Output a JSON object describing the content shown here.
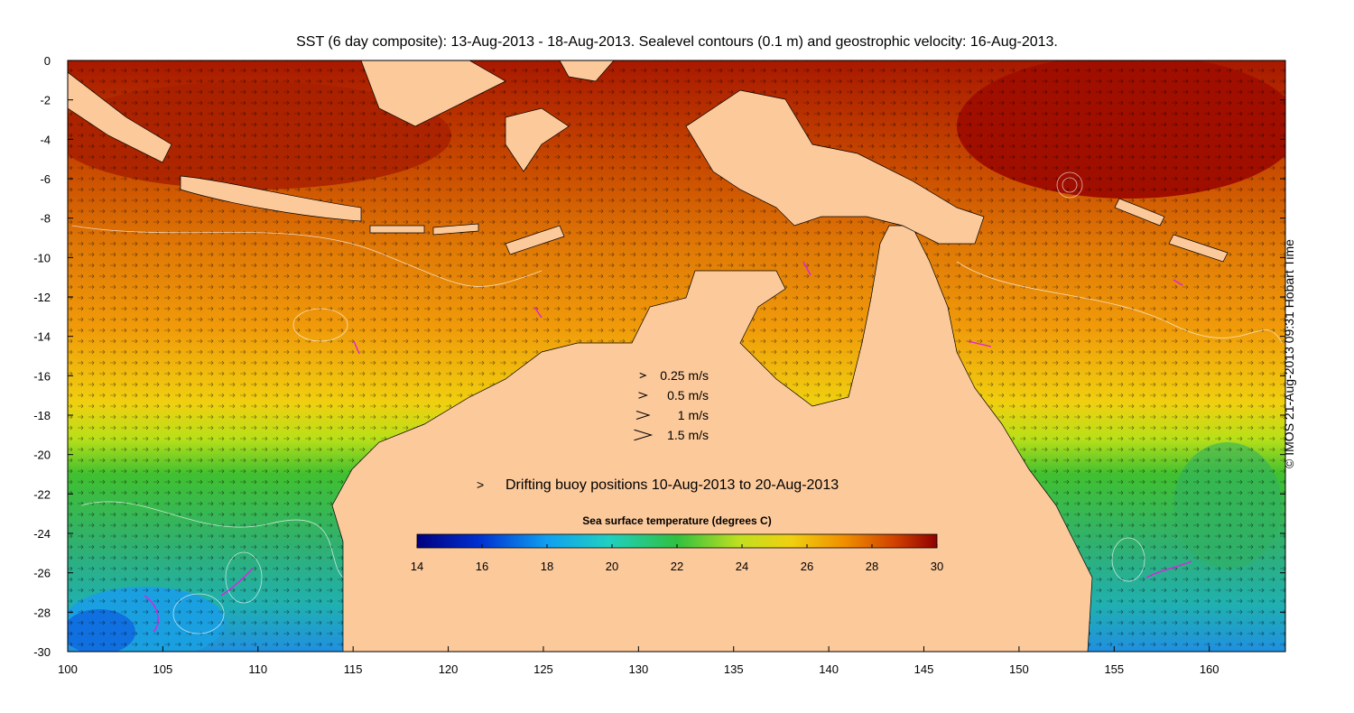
{
  "title": "SST (6 day composite): 13-Aug-2013 - 18-Aug-2013. Sealevel contours (0.1 m) and geostrophic velocity: 16-Aug-2013.",
  "credit": "© IMOS 21-Aug-2013 09:31 Hobart Time",
  "axes": {
    "x_ticks": [
      "100",
      "105",
      "110",
      "115",
      "120",
      "125",
      "130",
      "135",
      "140",
      "145",
      "150",
      "155",
      "160"
    ],
    "y_ticks": [
      "0",
      "-2",
      "-4",
      "-6",
      "-8",
      "-10",
      "-12",
      "-14",
      "-16",
      "-18",
      "-20",
      "-22",
      "-24",
      "-26",
      "-28",
      "-30"
    ],
    "lon_range": [
      100,
      164
    ],
    "lat_range": [
      -30,
      0
    ]
  },
  "velocity_legend": [
    {
      "label": "0.25 m/s",
      "speed": 0.25
    },
    {
      "label": "0.5 m/s",
      "speed": 0.5
    },
    {
      "label": "1 m/s",
      "speed": 1
    },
    {
      "label": "1.5 m/s",
      "speed": 1.5
    }
  ],
  "buoy_legend": "Drifting buoy positions 10-Aug-2013 to 20-Aug-2013",
  "colorbar": {
    "title": "Sea surface temperature (degrees C)",
    "ticks": [
      "14",
      "16",
      "18",
      "20",
      "22",
      "24",
      "26",
      "28",
      "30"
    ],
    "range": [
      14,
      30
    ]
  },
  "colors": {
    "land": "#fcc99b",
    "buoy": "#e020e0",
    "contour": "#ffffff"
  }
}
